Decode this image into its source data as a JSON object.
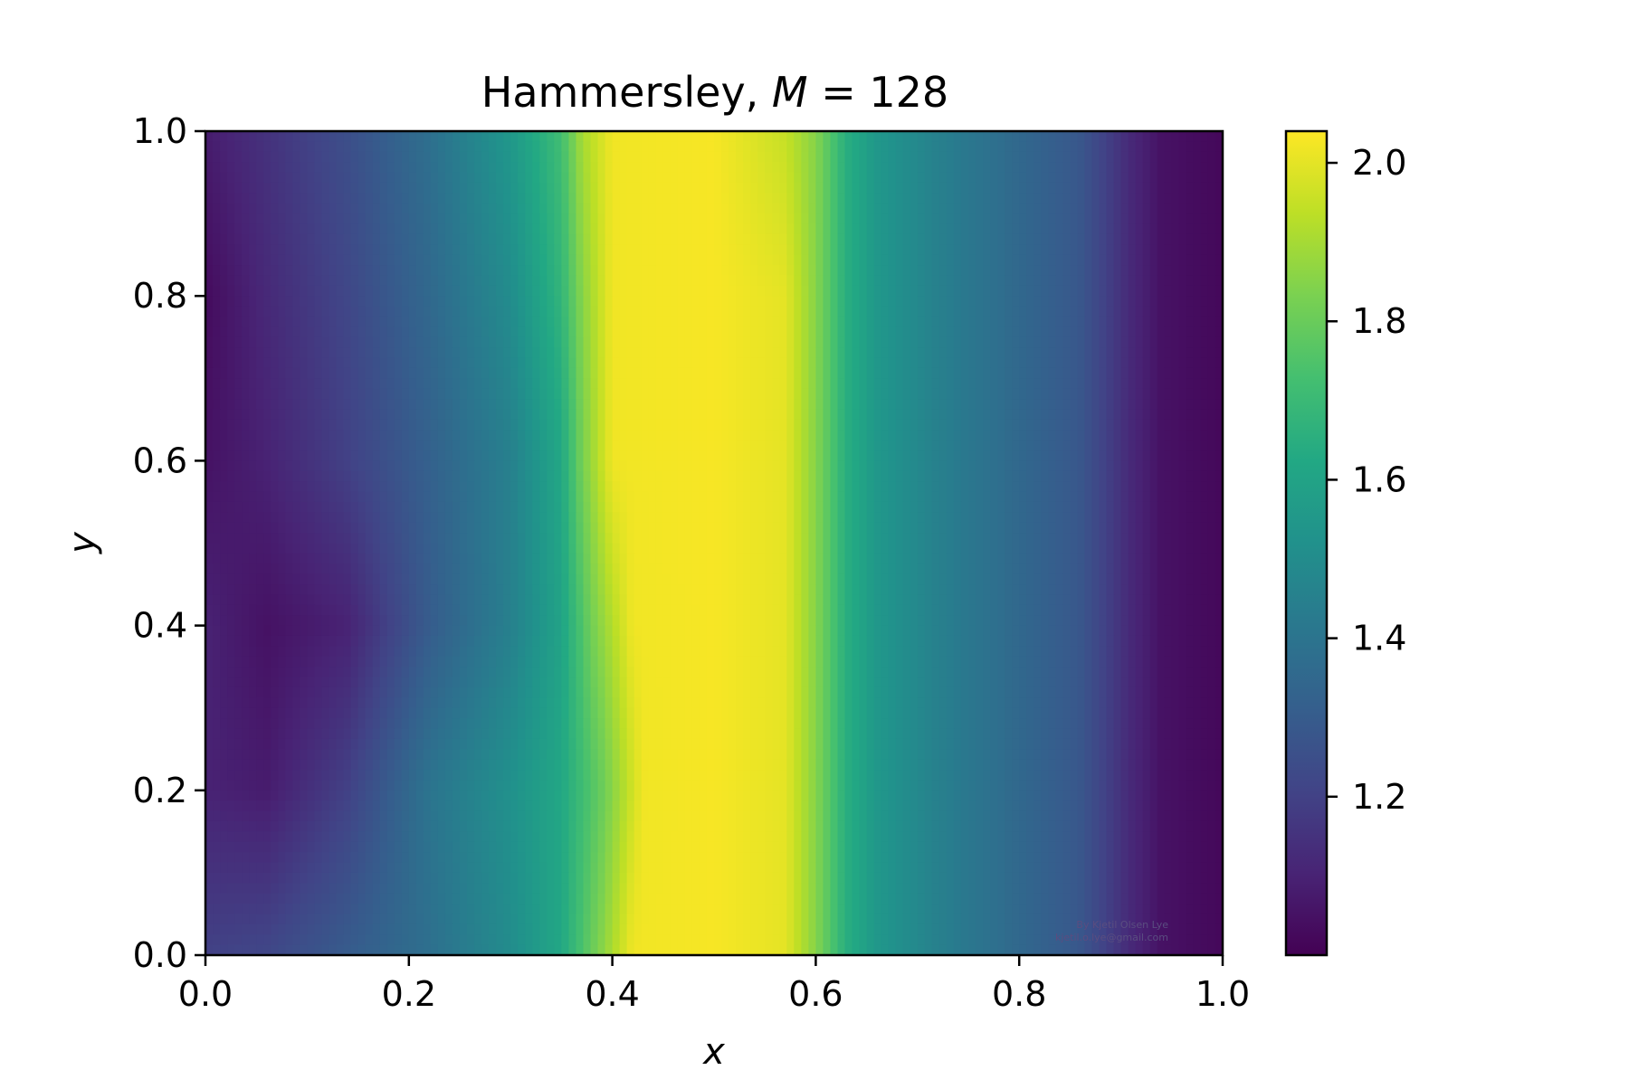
{
  "chart_data": {
    "type": "heatmap",
    "title": "Hammersley, ",
    "title_math": "M",
    "title_suffix": " = 128",
    "xlabel": "x",
    "ylabel": "y",
    "xlim": [
      0.0,
      1.0
    ],
    "ylim": [
      0.0,
      1.0
    ],
    "x_ticks": [
      "0.0",
      "0.2",
      "0.4",
      "0.6",
      "0.8",
      "1.0"
    ],
    "y_ticks": [
      "0.0",
      "0.2",
      "0.4",
      "0.6",
      "0.8",
      "1.0"
    ],
    "colormap": "viridis",
    "color_range": [
      1.0,
      2.04
    ],
    "colorbar_ticks": [
      {
        "value": 1.2,
        "label": "1.2"
      },
      {
        "value": 1.4,
        "label": "1.4"
      },
      {
        "value": 1.6,
        "label": "1.6"
      },
      {
        "value": 1.8,
        "label": "1.8"
      },
      {
        "value": 2.0,
        "label": "2.0"
      }
    ],
    "grid": false,
    "field_profiles": [
      {
        "y": 0.0,
        "x": [
          0.0,
          0.06,
          0.14,
          0.22,
          0.3,
          0.35,
          0.38,
          0.42,
          0.5,
          0.57,
          0.6,
          0.63,
          0.66,
          0.72,
          0.8,
          0.86,
          0.91,
          0.94,
          1.0
        ],
        "v": [
          1.2,
          1.22,
          1.3,
          1.38,
          1.5,
          1.62,
          1.8,
          2.02,
          2.03,
          2.0,
          1.85,
          1.65,
          1.55,
          1.45,
          1.35,
          1.28,
          1.12,
          1.05,
          1.02
        ]
      },
      {
        "y": 0.2,
        "x": [
          0.0,
          0.06,
          0.14,
          0.22,
          0.3,
          0.35,
          0.39,
          0.43,
          0.5,
          0.57,
          0.6,
          0.63,
          0.66,
          0.72,
          0.8,
          0.86,
          0.91,
          0.94,
          1.0
        ],
        "v": [
          1.1,
          1.08,
          1.2,
          1.4,
          1.52,
          1.62,
          1.8,
          2.02,
          2.03,
          2.0,
          1.85,
          1.65,
          1.55,
          1.45,
          1.35,
          1.28,
          1.12,
          1.05,
          1.02
        ]
      },
      {
        "y": 0.4,
        "x": [
          0.0,
          0.06,
          0.14,
          0.22,
          0.3,
          0.35,
          0.38,
          0.42,
          0.5,
          0.57,
          0.6,
          0.63,
          0.66,
          0.72,
          0.8,
          0.86,
          0.91,
          0.94,
          1.0
        ],
        "v": [
          1.1,
          1.05,
          1.1,
          1.3,
          1.45,
          1.6,
          1.82,
          2.02,
          2.03,
          2.0,
          1.85,
          1.65,
          1.55,
          1.45,
          1.35,
          1.28,
          1.12,
          1.05,
          1.02
        ]
      },
      {
        "y": 0.6,
        "x": [
          0.0,
          0.06,
          0.14,
          0.22,
          0.3,
          0.35,
          0.37,
          0.4,
          0.5,
          0.57,
          0.6,
          0.63,
          0.66,
          0.72,
          0.8,
          0.86,
          0.91,
          0.94,
          1.0
        ],
        "v": [
          1.05,
          1.1,
          1.2,
          1.32,
          1.45,
          1.62,
          1.82,
          2.02,
          2.03,
          2.0,
          1.85,
          1.65,
          1.55,
          1.45,
          1.35,
          1.28,
          1.12,
          1.05,
          1.02
        ]
      },
      {
        "y": 0.8,
        "x": [
          0.0,
          0.06,
          0.14,
          0.22,
          0.3,
          0.35,
          0.37,
          0.4,
          0.5,
          0.57,
          0.6,
          0.63,
          0.66,
          0.72,
          0.8,
          0.86,
          0.91,
          0.94,
          1.0
        ],
        "v": [
          1.03,
          1.12,
          1.22,
          1.35,
          1.5,
          1.68,
          1.85,
          2.02,
          2.03,
          2.0,
          1.85,
          1.65,
          1.55,
          1.45,
          1.35,
          1.28,
          1.12,
          1.05,
          1.02
        ]
      },
      {
        "y": 1.0,
        "x": [
          0.0,
          0.06,
          0.14,
          0.22,
          0.3,
          0.35,
          0.37,
          0.4,
          0.5,
          0.57,
          0.6,
          0.63,
          0.66,
          0.72,
          0.8,
          0.86,
          0.91,
          0.94,
          1.0
        ],
        "v": [
          1.08,
          1.15,
          1.25,
          1.38,
          1.55,
          1.72,
          1.9,
          2.02,
          2.03,
          1.95,
          1.85,
          1.65,
          1.55,
          1.45,
          1.35,
          1.28,
          1.12,
          1.05,
          1.02
        ]
      }
    ]
  },
  "watermark": {
    "line1": "By Kjetil Olsen Lye",
    "line2": "kjetil.o.lye@gmail.com"
  }
}
